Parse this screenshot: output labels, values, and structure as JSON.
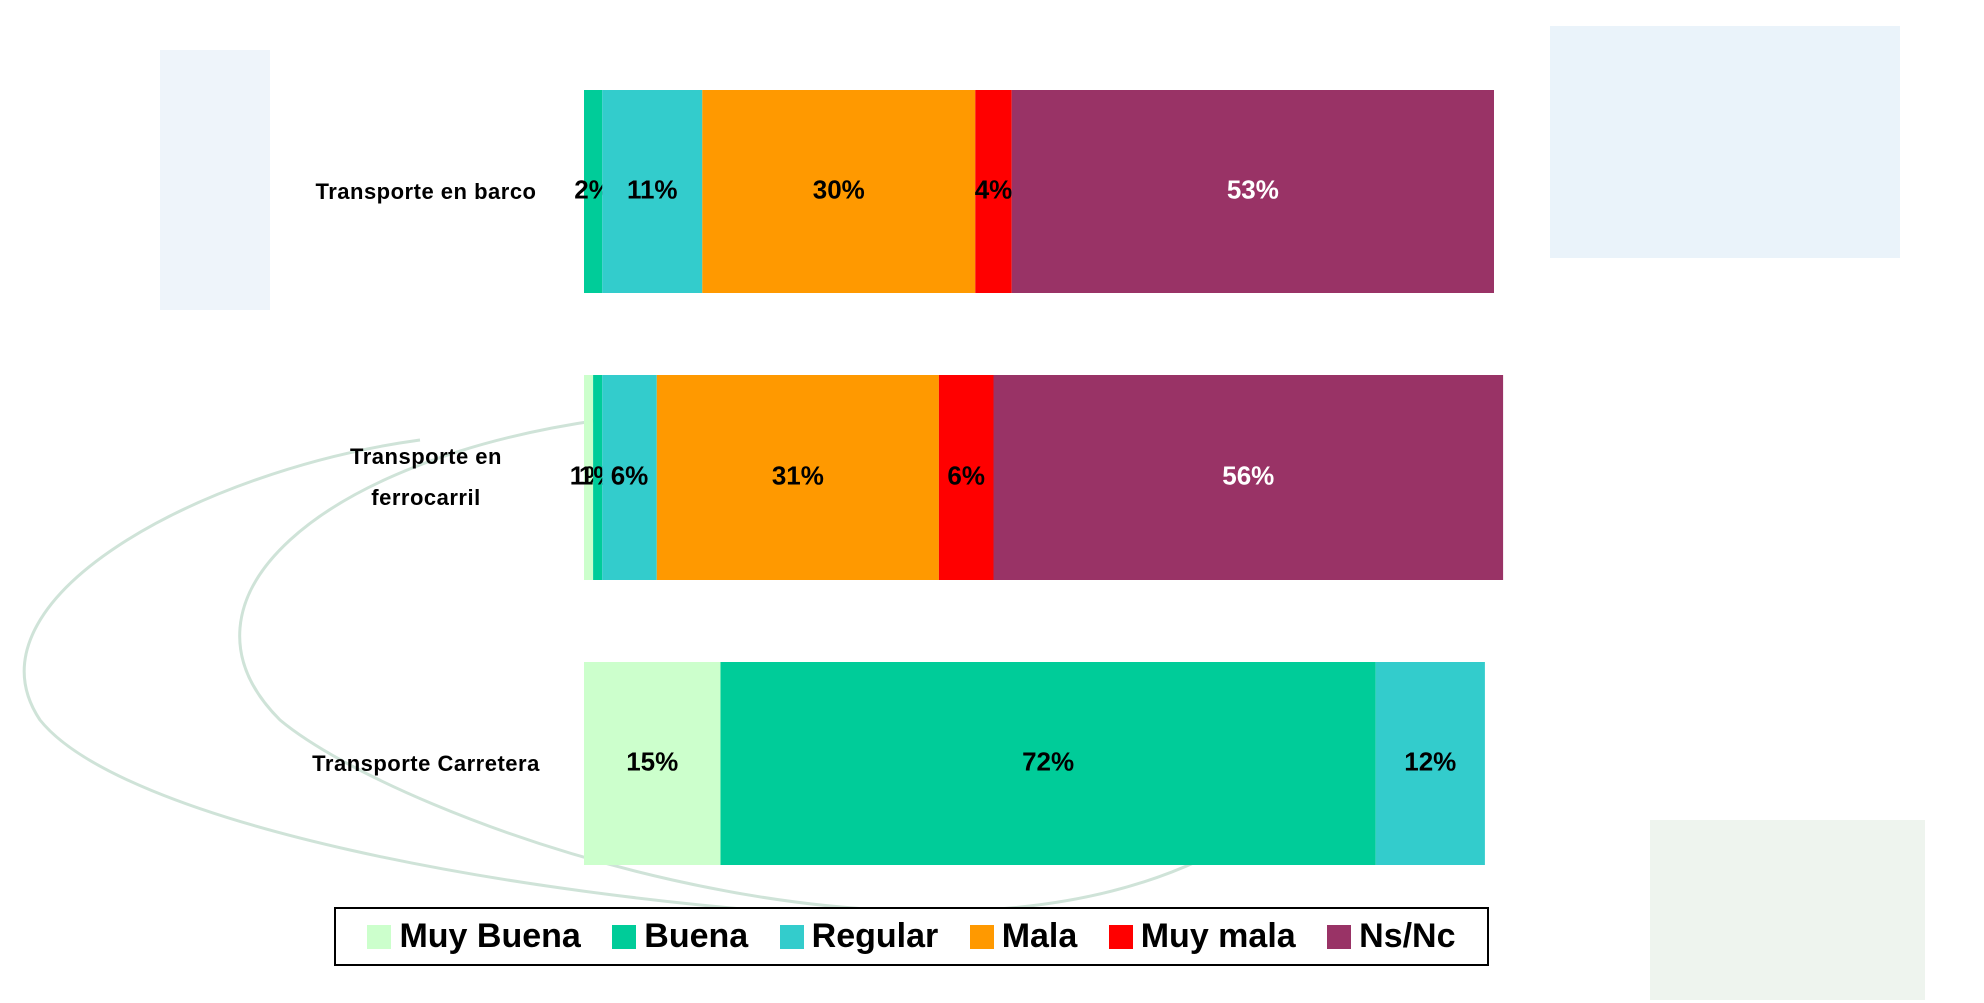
{
  "chart_data": {
    "type": "stacked-bar",
    "orientation": "horizontal",
    "categories": [
      "Transporte en barco",
      "Transporte en ferrocarril",
      "Transporte Carretera"
    ],
    "xlim": [
      0,
      100
    ],
    "legend": "bottom",
    "series": [
      {
        "name": "Muy Buena",
        "color": "#ccffcc",
        "values": [
          null,
          1,
          15
        ],
        "value_labels": [
          null,
          "1%",
          "15%"
        ]
      },
      {
        "name": "Buena",
        "color": "#00cc99",
        "values": [
          2,
          1,
          72
        ],
        "value_labels": [
          "2%",
          "1%",
          "72%"
        ]
      },
      {
        "name": "Regular",
        "color": "#33cccc",
        "values": [
          11,
          6,
          12
        ],
        "value_labels": [
          "11%",
          "6%",
          "12%"
        ]
      },
      {
        "name": "Mala",
        "color": "#ff9900",
        "values": [
          30,
          31,
          null
        ],
        "value_labels": [
          "30%",
          "31%",
          null
        ]
      },
      {
        "name": "Muy mala",
        "color": "#ff0000",
        "values": [
          4,
          6,
          null
        ],
        "value_labels": [
          "4%",
          "6%",
          null
        ]
      },
      {
        "name": "Ns/Nc",
        "color": "#993366",
        "values": [
          53,
          56,
          null
        ],
        "value_labels": [
          "53%",
          "56%",
          null
        ]
      }
    ]
  }
}
